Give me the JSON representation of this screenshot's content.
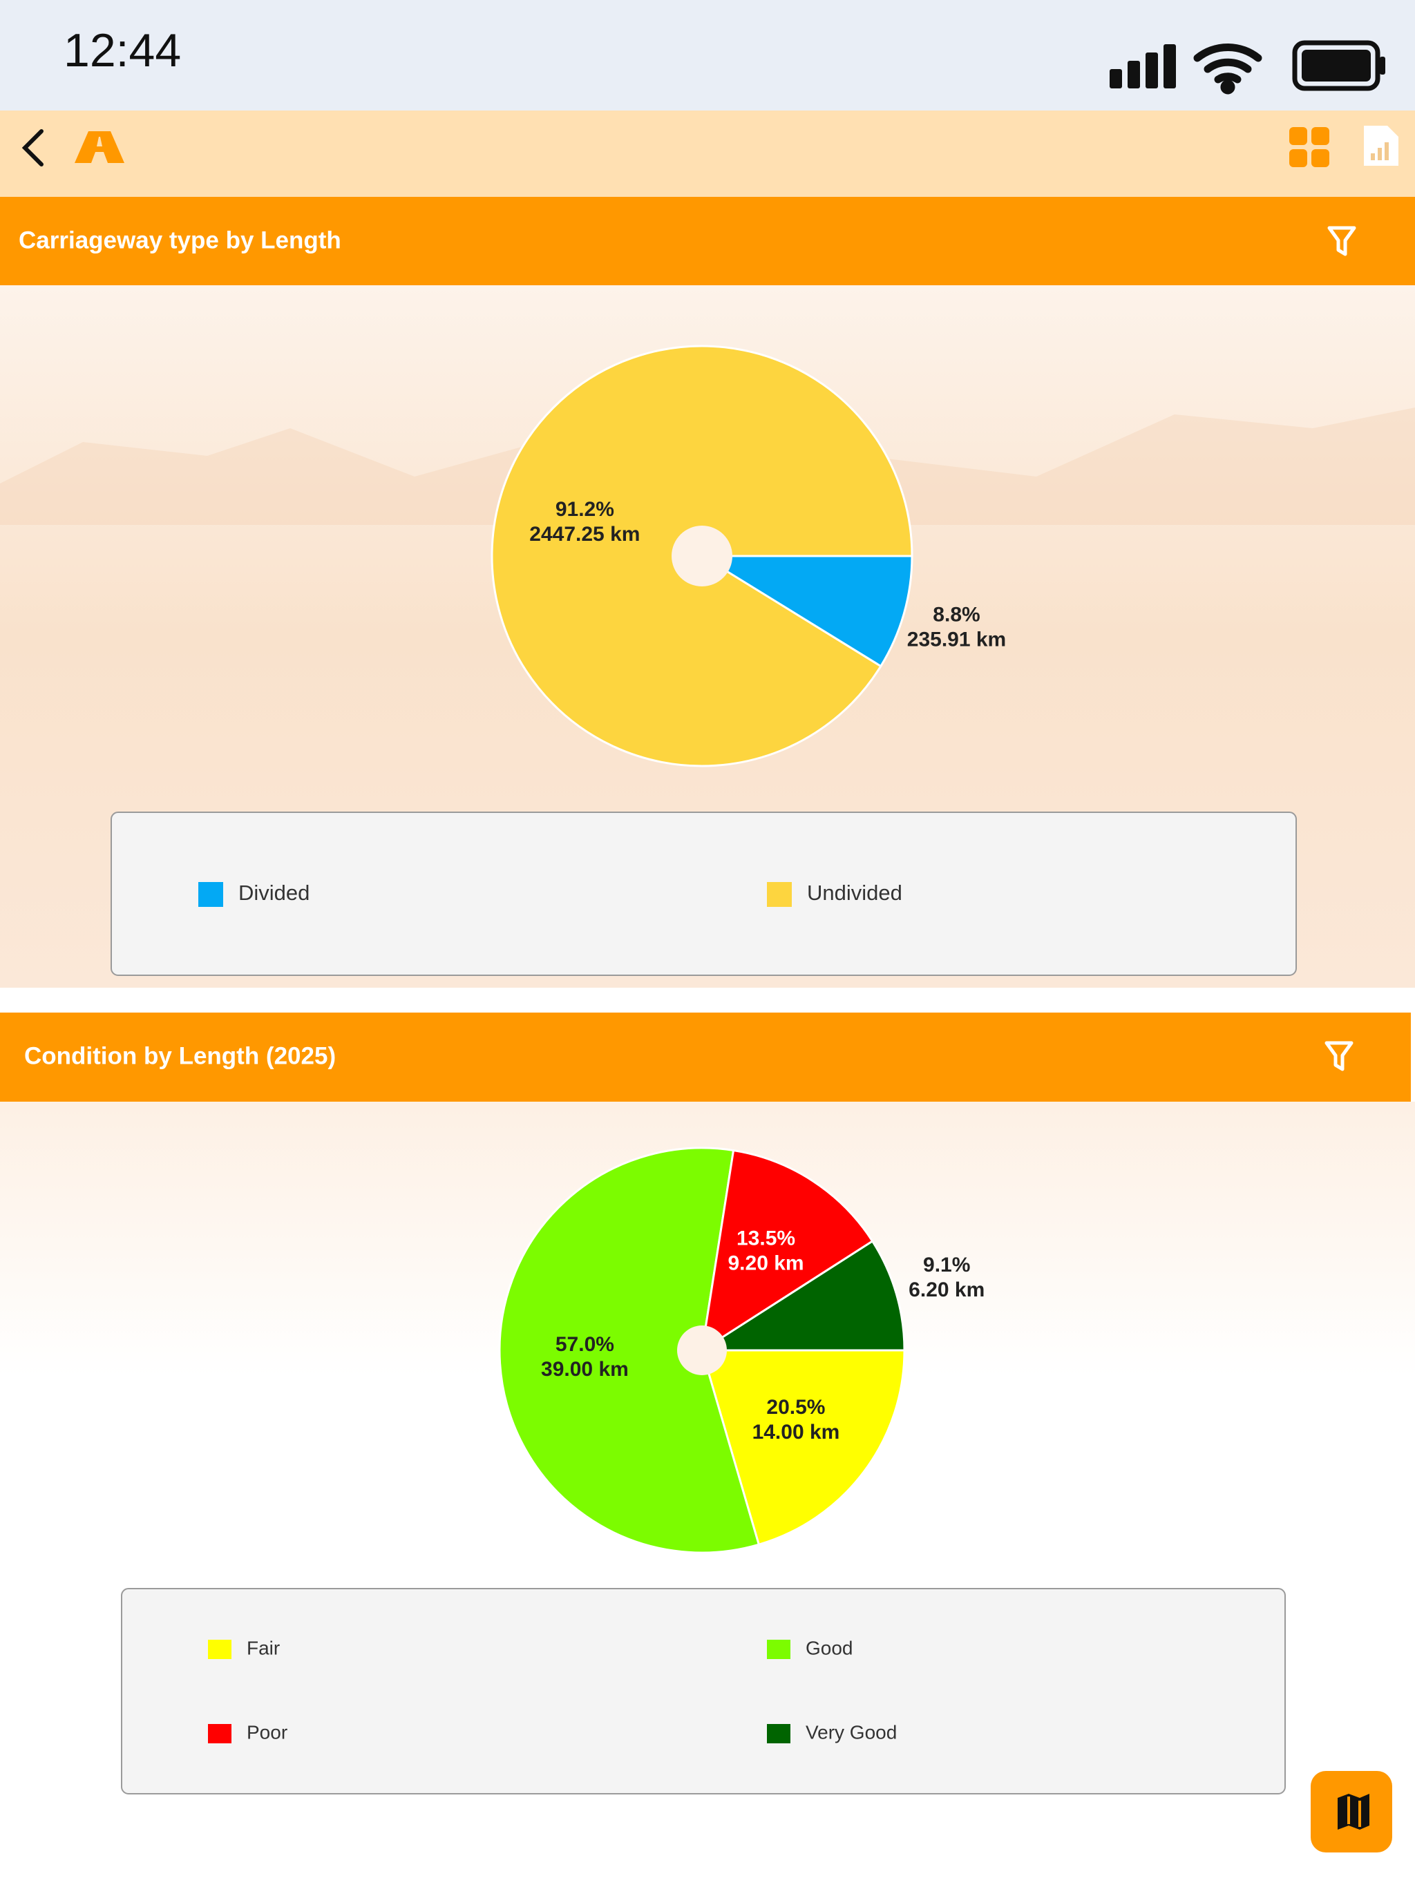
{
  "status_bar": {
    "time": "12:44"
  },
  "chart_data": [
    {
      "type": "pie",
      "title": "Carriageway type by Length",
      "categories": [
        "Divided",
        "Undivided"
      ],
      "values": [
        235.91,
        2447.25
      ],
      "value_labels": [
        "235.91 km",
        "2447.25 km"
      ],
      "percents": [
        8.8,
        91.2
      ],
      "percent_labels": [
        "8.8%",
        "91.2%"
      ],
      "colors": [
        "#03a9f4",
        "#fdd53f"
      ],
      "legend": "bottom"
    },
    {
      "type": "pie",
      "title": "Condition by Length (2025)",
      "categories": [
        "Fair",
        "Good",
        "Poor",
        "Very Good"
      ],
      "values": [
        14.0,
        39.0,
        9.2,
        6.2
      ],
      "value_labels": [
        "14.00 km",
        "39.00 km",
        "9.20 km",
        "6.20 km"
      ],
      "percents": [
        20.5,
        57.0,
        13.5,
        9.1
      ],
      "percent_labels": [
        "20.5%",
        "57.0%",
        "13.5%",
        "9.1%"
      ],
      "colors": [
        "#ffff00",
        "#7cfc00",
        "#ff0000",
        "#006400"
      ],
      "legend": "bottom"
    }
  ]
}
